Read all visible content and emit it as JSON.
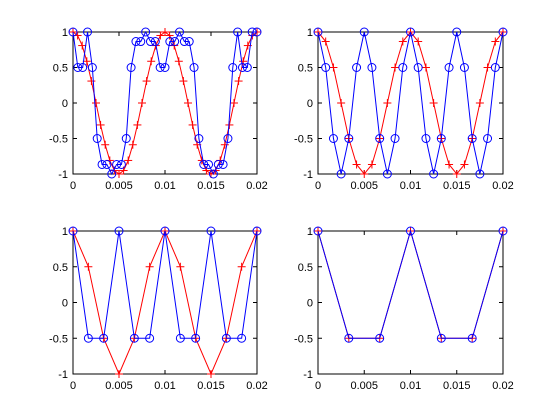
{
  "figure": {
    "background": "#ffffff"
  },
  "chart_data": [
    {
      "type": "line",
      "xlim": [
        0,
        0.02
      ],
      "ylim": [
        -1,
        1
      ],
      "xticks": [
        0,
        0.005,
        0.01,
        0.015,
        0.02
      ],
      "xtick_labels": [
        "0",
        "0.005",
        "0.01",
        "0.015",
        "0.02"
      ],
      "yticks": [
        -1,
        -0.5,
        0,
        0.5,
        1
      ],
      "ytick_labels": [
        "-1",
        "-0.5",
        "0",
        "0.5",
        "1"
      ],
      "grid": false,
      "series": [
        {
          "color": "#ff0000",
          "marker": "plus",
          "x": [
            0,
            0.0005,
            0.001,
            0.0015,
            0.002,
            0.0025,
            0.003,
            0.0035,
            0.004,
            0.0045,
            0.005,
            0.0055,
            0.006,
            0.0065,
            0.007,
            0.0075,
            0.008,
            0.0085,
            0.009,
            0.0095,
            0.01,
            0.0105,
            0.011,
            0.0115,
            0.012,
            0.0125,
            0.013,
            0.0135,
            0.014,
            0.0145,
            0.015,
            0.0155,
            0.016,
            0.0165,
            0.017,
            0.0175,
            0.018,
            0.0185,
            0.019,
            0.0195,
            0.02
          ],
          "y": [
            1,
            0.951,
            0.809,
            0.588,
            0.309,
            0,
            -0.309,
            -0.588,
            -0.809,
            -0.951,
            -1,
            -0.951,
            -0.809,
            -0.588,
            -0.309,
            0,
            0.309,
            0.588,
            0.809,
            0.951,
            1,
            0.951,
            0.809,
            0.588,
            0.309,
            0,
            -0.309,
            -0.588,
            -0.809,
            -0.951,
            -1,
            -0.951,
            -0.809,
            -0.588,
            -0.309,
            0,
            0.309,
            0.588,
            0.809,
            0.951,
            1
          ]
        },
        {
          "color": "#0000ff",
          "marker": "circle",
          "x": [
            0,
            0.000526,
            0.001053,
            0.001579,
            0.002105,
            0.002632,
            0.003158,
            0.003684,
            0.004211,
            0.004737,
            0.005263,
            0.005789,
            0.006316,
            0.006842,
            0.007368,
            0.007895,
            0.008421,
            0.008947,
            0.009474,
            0.01,
            0.010526,
            0.011053,
            0.011579,
            0.012105,
            0.012632,
            0.013158,
            0.013684,
            0.014211,
            0.014737,
            0.015263,
            0.015789,
            0.016316,
            0.016842,
            0.017368,
            0.017895,
            0.018421,
            0.018947,
            0.019474,
            0.02
          ],
          "y": [
            1,
            0.5,
            0.5,
            1,
            0.5,
            -0.5,
            -0.866,
            -0.866,
            -1,
            -0.866,
            -0.866,
            -0.5,
            0.5,
            0.866,
            0.866,
            1,
            0.866,
            0.866,
            0.5,
            0.5,
            0.866,
            0.866,
            1,
            0.866,
            0.866,
            0.5,
            -0.5,
            -0.866,
            -0.866,
            -1,
            -0.866,
            -0.866,
            -0.5,
            0.5,
            1,
            0.5,
            0.5,
            1,
            1
          ]
        }
      ]
    },
    {
      "type": "line",
      "xlim": [
        0,
        0.02
      ],
      "ylim": [
        -1,
        1
      ],
      "xticks": [
        0,
        0.005,
        0.01,
        0.015,
        0.02
      ],
      "xtick_labels": [
        "0",
        "0.005",
        "0.01",
        "0.015",
        "0.02"
      ],
      "yticks": [
        -1,
        -0.5,
        0,
        0.5,
        1
      ],
      "ytick_labels": [
        "-1",
        "-0.5",
        "0",
        "0.5",
        "1"
      ],
      "grid": false,
      "series": [
        {
          "color": "#ff0000",
          "marker": "plus",
          "x": [
            0,
            0.00083,
            0.00167,
            0.0025,
            0.00333,
            0.00417,
            0.005,
            0.00583,
            0.00667,
            0.0075,
            0.00833,
            0.00917,
            0.01,
            0.01083,
            0.01167,
            0.0125,
            0.01333,
            0.01417,
            0.015,
            0.01583,
            0.01667,
            0.0175,
            0.01833,
            0.01917,
            0.02
          ],
          "y": [
            1,
            0.866,
            0.5,
            0,
            -0.5,
            -0.866,
            -1,
            -0.866,
            -0.5,
            0,
            0.5,
            0.866,
            1,
            0.866,
            0.5,
            0,
            -0.5,
            -0.866,
            -1,
            -0.866,
            -0.5,
            0,
            0.5,
            0.866,
            1
          ]
        },
        {
          "color": "#0000ff",
          "marker": "circle",
          "x": [
            0,
            0.00083,
            0.00167,
            0.0025,
            0.00333,
            0.00417,
            0.005,
            0.00583,
            0.00667,
            0.0075,
            0.00833,
            0.00917,
            0.01,
            0.01083,
            0.01167,
            0.0125,
            0.01333,
            0.01417,
            0.015,
            0.01583,
            0.01667,
            0.0175,
            0.01833,
            0.01917,
            0.02
          ],
          "y": [
            1,
            0.5,
            -0.5,
            -1,
            -0.5,
            0.5,
            1,
            0.5,
            -0.5,
            -1,
            -0.5,
            0.5,
            1,
            0.5,
            -0.5,
            -1,
            -0.5,
            0.5,
            1,
            0.5,
            -0.5,
            -1,
            -0.5,
            0.5,
            1
          ]
        }
      ]
    },
    {
      "type": "line",
      "xlim": [
        0,
        0.02
      ],
      "ylim": [
        -1,
        1
      ],
      "xticks": [
        0,
        0.005,
        0.01,
        0.015,
        0.02
      ],
      "xtick_labels": [
        "0",
        "0.005",
        "0.01",
        "0.015",
        "0.02"
      ],
      "yticks": [
        -1,
        -0.5,
        0,
        0.5,
        1
      ],
      "ytick_labels": [
        "-1",
        "-0.5",
        "0",
        "0.5",
        "1"
      ],
      "grid": false,
      "series": [
        {
          "color": "#ff0000",
          "marker": "plus",
          "x": [
            0,
            0.00167,
            0.00333,
            0.005,
            0.00667,
            0.00833,
            0.01,
            0.01167,
            0.01333,
            0.015,
            0.01667,
            0.01833,
            0.02
          ],
          "y": [
            1,
            0.5,
            -0.5,
            -1,
            -0.5,
            0.5,
            1,
            0.5,
            -0.5,
            -1,
            -0.5,
            0.5,
            1
          ]
        },
        {
          "color": "#0000ff",
          "marker": "circle",
          "x": [
            0,
            0.00167,
            0.00333,
            0.005,
            0.00667,
            0.00833,
            0.01,
            0.01167,
            0.01333,
            0.015,
            0.01667,
            0.01833,
            0.02
          ],
          "y": [
            1,
            -0.5,
            -0.5,
            1,
            -0.5,
            -0.5,
            1,
            -0.5,
            -0.5,
            1,
            -0.5,
            -0.5,
            1
          ]
        }
      ]
    },
    {
      "type": "line",
      "xlim": [
        0,
        0.02
      ],
      "ylim": [
        -1,
        1
      ],
      "xticks": [
        0,
        0.005,
        0.01,
        0.015,
        0.02
      ],
      "xtick_labels": [
        "0",
        "0.005",
        "0.01",
        "0.015",
        "0.02"
      ],
      "yticks": [
        -1,
        -0.5,
        0,
        0.5,
        1
      ],
      "ytick_labels": [
        "-1",
        "-0.5",
        "0",
        "0.5",
        "1"
      ],
      "grid": false,
      "series": [
        {
          "color": "#ff0000",
          "marker": "plus",
          "x": [
            0,
            0.00333,
            0.00667,
            0.01,
            0.01333,
            0.01667,
            0.02
          ],
          "y": [
            1,
            -0.5,
            -0.5,
            1,
            -0.5,
            -0.5,
            1
          ]
        },
        {
          "color": "#0000ff",
          "marker": "circle",
          "x": [
            0,
            0.00333,
            0.00667,
            0.01,
            0.01333,
            0.01667,
            0.02
          ],
          "y": [
            1,
            -0.5,
            -0.5,
            1,
            -0.5,
            -0.5,
            1
          ]
        }
      ]
    }
  ]
}
